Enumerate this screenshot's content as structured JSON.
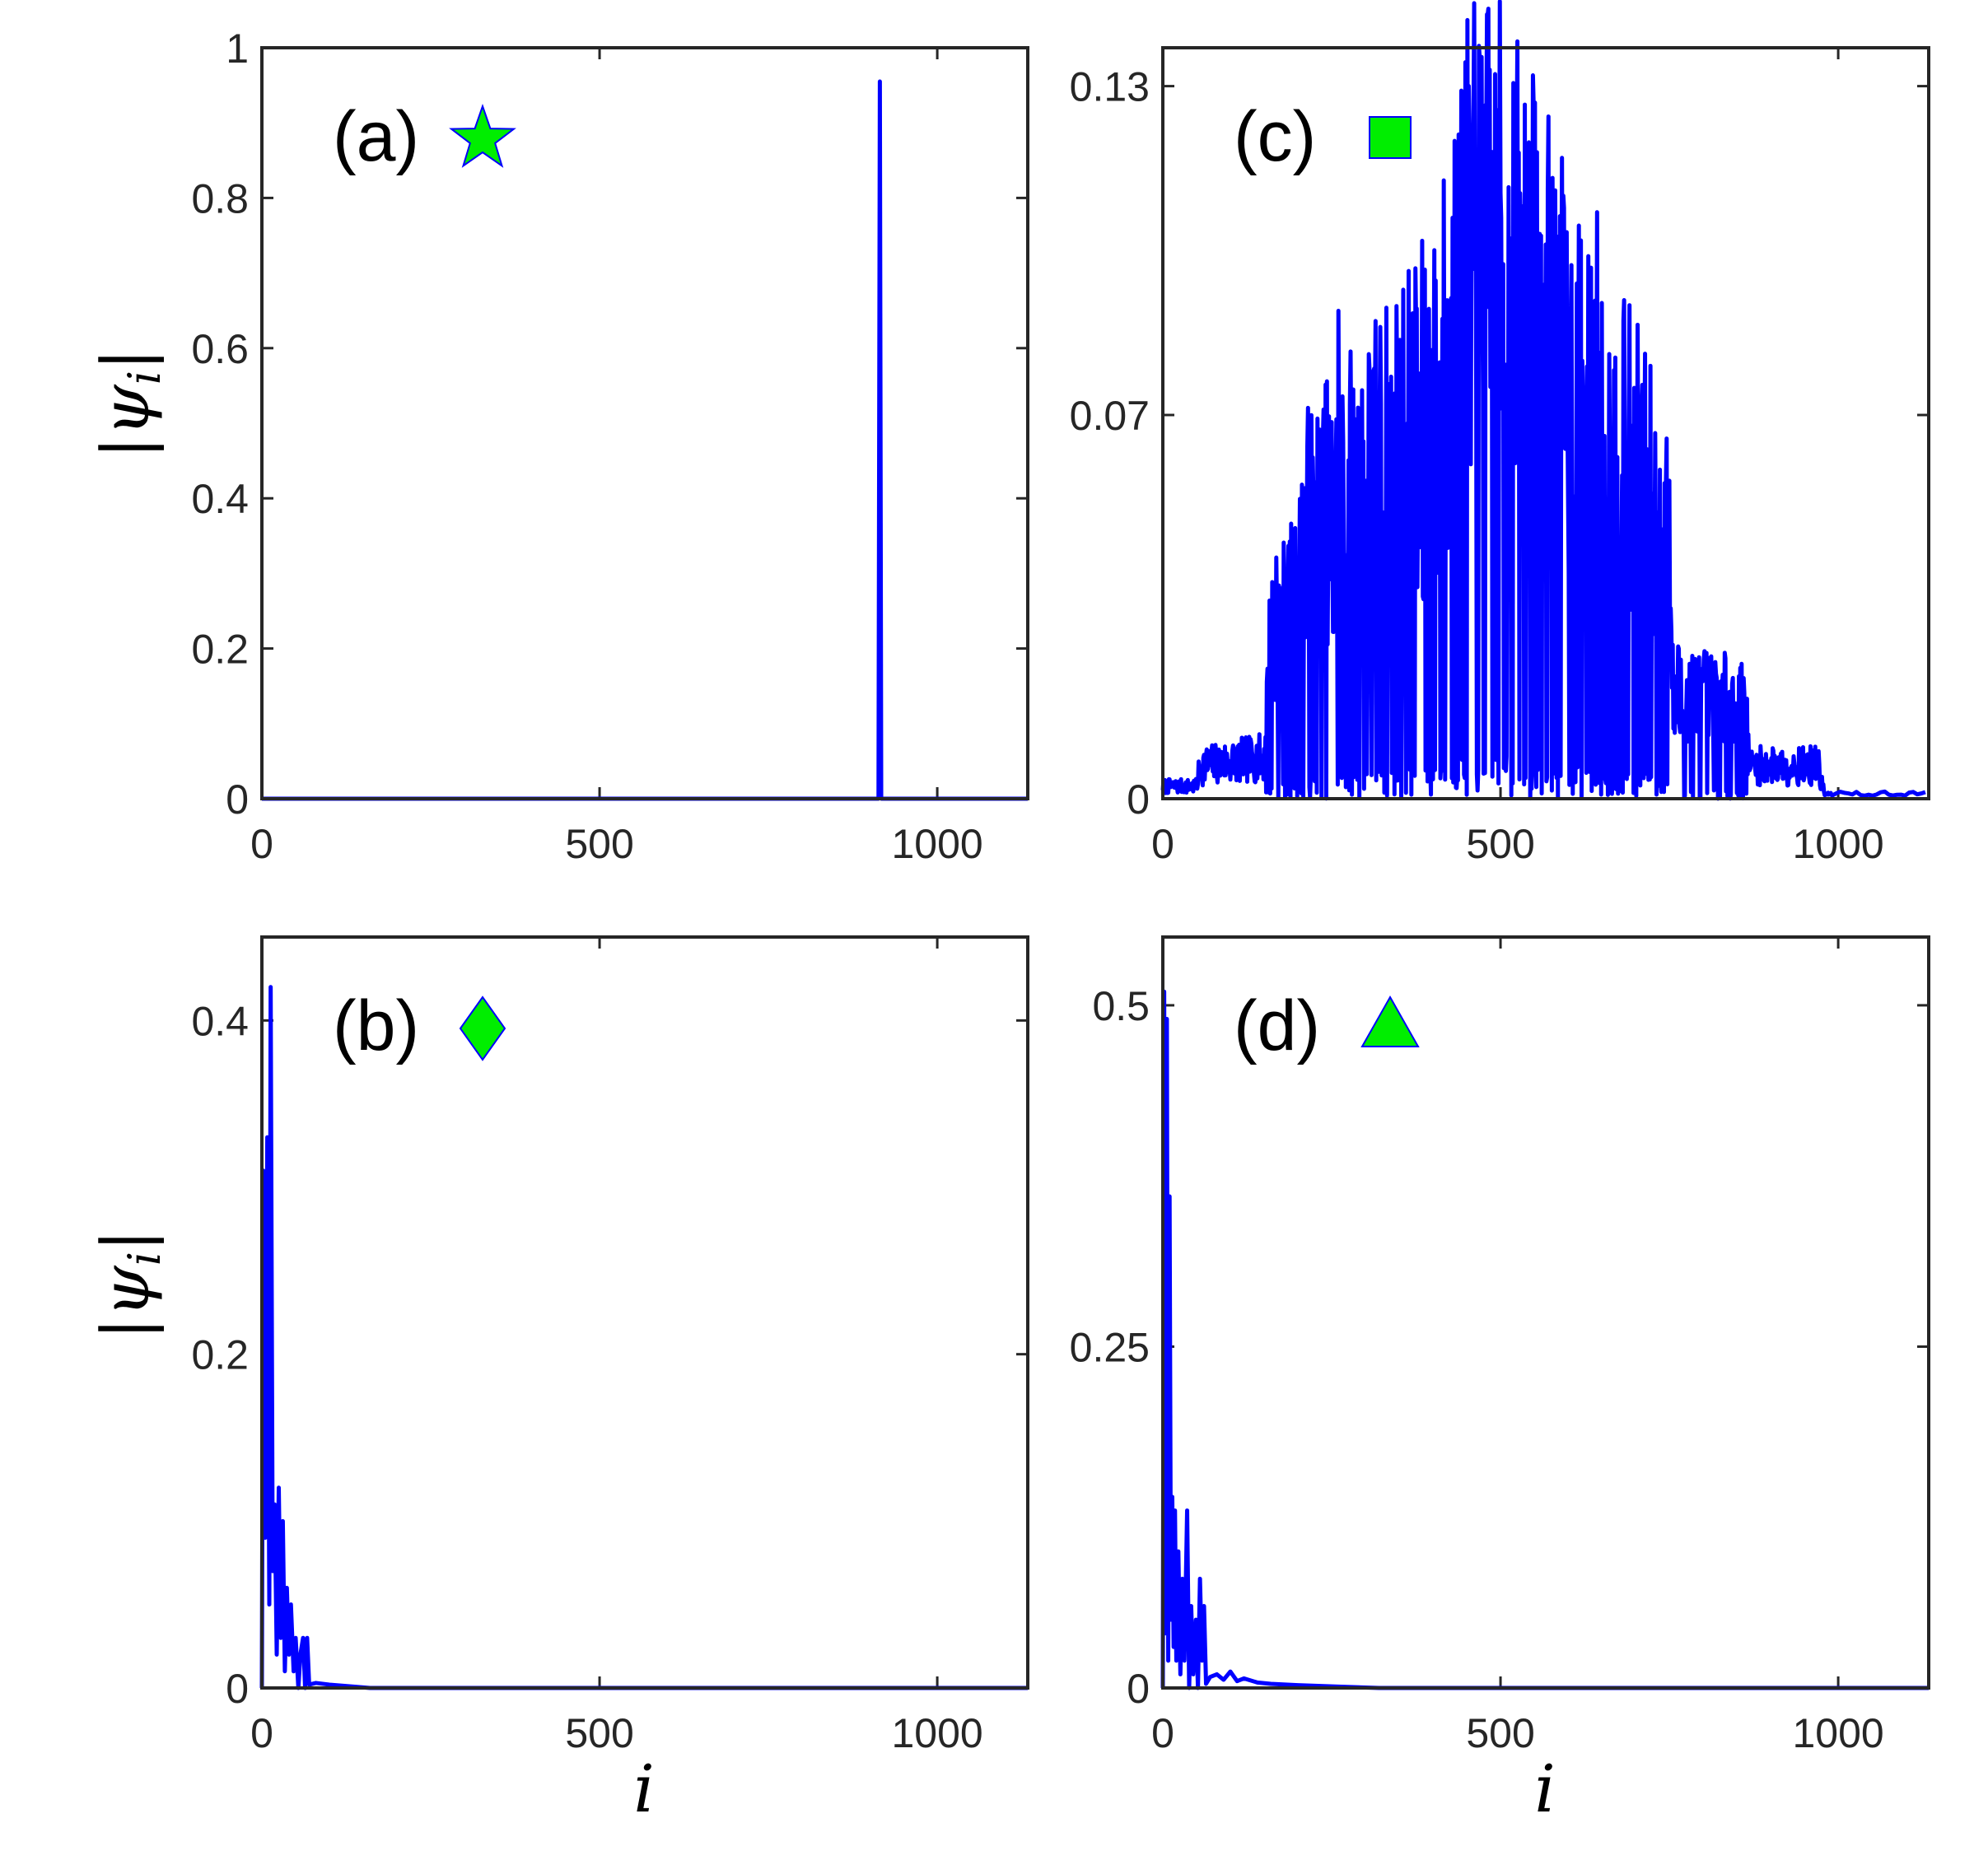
{
  "figure": {
    "line_color": "#0000ff",
    "marker_fill": "#00ee00",
    "marker_stroke": "#0000ff",
    "axis_color": "#262626"
  },
  "chart_data": [
    {
      "id": "a",
      "type": "line",
      "panel_label": "(a)",
      "marker": "star",
      "xlabel": "",
      "ylabel": "|ψ_i|",
      "xlim": [
        0,
        1134
      ],
      "ylim": [
        0,
        1
      ],
      "xticks": [
        0,
        500,
        1000
      ],
      "yticks": [
        0,
        0.2,
        0.4,
        0.6,
        0.8,
        1
      ],
      "ytick_labels": [
        "0",
        "0.2",
        "0.4",
        "0.6",
        "0.8",
        "1"
      ],
      "xtick_labels": [
        "0",
        "500",
        "1000"
      ],
      "series": [
        {
          "kind": "spike",
          "baseline": 0.0,
          "x": 915,
          "peak": 0.955
        }
      ]
    },
    {
      "id": "c",
      "type": "line",
      "panel_label": "(c)",
      "marker": "square",
      "xlabel": "",
      "ylabel": "",
      "xlim": [
        0,
        1134
      ],
      "ylim": [
        0,
        0.137
      ],
      "xticks": [
        0,
        500,
        1000
      ],
      "yticks": [
        0,
        0.07,
        0.13
      ],
      "ytick_labels": [
        "0",
        "0.07",
        "0.13"
      ],
      "xtick_labels": [
        "0",
        "500",
        "1000"
      ],
      "series": [
        {
          "kind": "noisy",
          "seed": 7,
          "envelope_x": [
            0,
            50,
            55,
            150,
            160,
            200,
            210,
            300,
            400,
            450,
            480,
            550,
            650,
            700,
            750,
            755,
            860,
            870,
            970,
            980,
            1134
          ],
          "envelope_y": [
            0.003,
            0.003,
            0.008,
            0.01,
            0.03,
            0.035,
            0.048,
            0.058,
            0.07,
            0.095,
            0.1,
            0.09,
            0.062,
            0.06,
            0.045,
            0.02,
            0.017,
            0.008,
            0.008,
            0.001,
            0.001
          ],
          "peaks": [
            [
              260,
              0.089
            ],
            [
              323,
              0.072
            ],
            [
              344,
              0.074
            ],
            [
              375,
              0.087
            ],
            [
              432,
              0.12
            ],
            [
              455,
              0.102
            ],
            [
              484,
              0.133
            ],
            [
              540,
              0.087
            ],
            [
              597,
              0.08
            ],
            [
              643,
              0.107
            ],
            [
              700,
              0.069
            ],
            [
              750,
              0.058
            ],
            [
              860,
              0.022
            ],
            [
              168,
              0.044
            ],
            [
              287,
              0.055
            ],
            [
              490,
              0.104
            ]
          ]
        }
      ]
    },
    {
      "id": "b",
      "type": "line",
      "panel_label": "(b)",
      "marker": "diamond",
      "xlabel": "i",
      "ylabel": "|ψ_i|",
      "xlim": [
        0,
        1134
      ],
      "ylim": [
        0,
        0.45
      ],
      "xticks": [
        0,
        500,
        1000
      ],
      "yticks": [
        0,
        0.2,
        0.4
      ],
      "ytick_labels": [
        "0",
        "0.2",
        "0.4"
      ],
      "xtick_labels": [
        "0",
        "500",
        "1000"
      ],
      "series": [
        {
          "kind": "decay",
          "seed": 3,
          "points": [
            [
              0,
              0.0
            ],
            [
              2,
              0.31
            ],
            [
              5,
              0.09
            ],
            [
              8,
              0.33
            ],
            [
              11,
              0.05
            ],
            [
              13,
              0.42
            ],
            [
              16,
              0.07
            ],
            [
              19,
              0.11
            ],
            [
              22,
              0.02
            ],
            [
              25,
              0.12
            ],
            [
              28,
              0.03
            ],
            [
              31,
              0.1
            ],
            [
              34,
              0.01
            ],
            [
              37,
              0.06
            ],
            [
              40,
              0.02
            ],
            [
              43,
              0.05
            ],
            [
              47,
              0.01
            ],
            [
              50,
              0.03
            ],
            [
              54,
              0.0
            ],
            [
              57,
              0.02
            ],
            [
              61,
              0.03
            ],
            [
              64,
              0.0
            ],
            [
              67,
              0.03
            ],
            [
              70,
              0.002
            ],
            [
              80,
              0.003
            ],
            [
              100,
              0.002
            ],
            [
              130,
              0.001
            ],
            [
              160,
              0.0
            ],
            [
              1134,
              0.0
            ]
          ]
        }
      ]
    },
    {
      "id": "d",
      "type": "line",
      "panel_label": "(d)",
      "marker": "triangle",
      "xlabel": "i",
      "ylabel": "",
      "xlim": [
        0,
        1134
      ],
      "ylim": [
        0,
        0.55
      ],
      "xticks": [
        0,
        500,
        1000
      ],
      "yticks": [
        0,
        0.25,
        0.5
      ],
      "ytick_labels": [
        "0",
        "0.25",
        "0.5"
      ],
      "xtick_labels": [
        "0",
        "500",
        "1000"
      ],
      "series": [
        {
          "kind": "decay",
          "seed": 5,
          "points": [
            [
              0,
              0.0
            ],
            [
              2,
              0.51
            ],
            [
              4,
              0.04
            ],
            [
              6,
              0.49
            ],
            [
              8,
              0.02
            ],
            [
              10,
              0.36
            ],
            [
              12,
              0.05
            ],
            [
              14,
              0.14
            ],
            [
              16,
              0.03
            ],
            [
              18,
              0.13
            ],
            [
              20,
              0.02
            ],
            [
              23,
              0.1
            ],
            [
              26,
              0.01
            ],
            [
              29,
              0.08
            ],
            [
              32,
              0.02
            ],
            [
              36,
              0.13
            ],
            [
              39,
              0.0
            ],
            [
              42,
              0.06
            ],
            [
              45,
              0.01
            ],
            [
              49,
              0.05
            ],
            [
              52,
              0.0
            ],
            [
              55,
              0.08
            ],
            [
              58,
              0.02
            ],
            [
              61,
              0.06
            ],
            [
              64,
              0.003
            ],
            [
              70,
              0.008
            ],
            [
              80,
              0.01
            ],
            [
              90,
              0.006
            ],
            [
              100,
              0.012
            ],
            [
              110,
              0.005
            ],
            [
              120,
              0.007
            ],
            [
              140,
              0.004
            ],
            [
              160,
              0.003
            ],
            [
              200,
              0.002
            ],
            [
              260,
              0.001
            ],
            [
              320,
              0.0
            ],
            [
              1134,
              0.0
            ]
          ]
        }
      ]
    }
  ]
}
